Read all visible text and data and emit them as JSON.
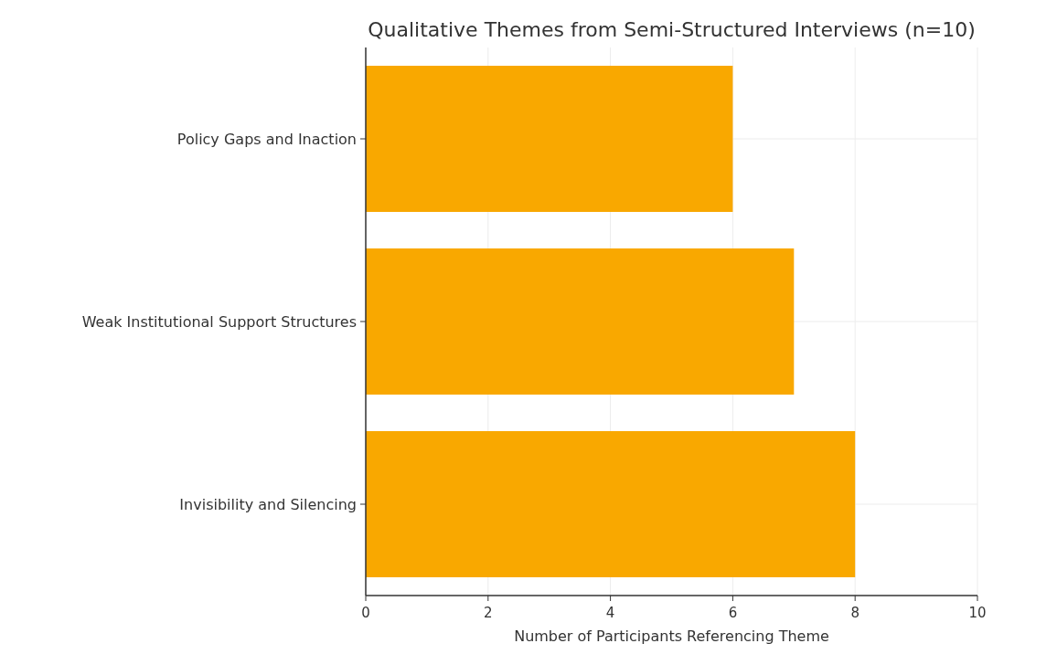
{
  "chart_data": {
    "type": "bar",
    "orientation": "horizontal",
    "title": "Qualitative Themes from Semi-Structured Interviews (n=10)",
    "xlabel": "Number of Participants Referencing Theme",
    "categories": [
      "Policy Gaps and Inaction",
      "Weak Institutional Support Structures",
      "Invisibility and Silencing"
    ],
    "values": [
      6,
      7,
      8
    ],
    "color": "#f9a800",
    "xlim": [
      0,
      10
    ],
    "xticks": [
      0,
      2,
      4,
      6,
      8,
      10
    ],
    "grid": true
  }
}
